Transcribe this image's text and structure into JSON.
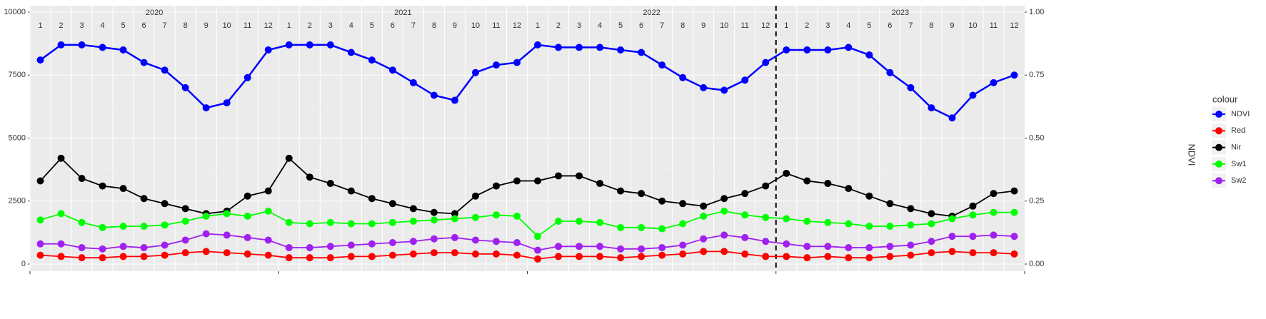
{
  "chart_data": {
    "type": "line",
    "years": [
      "2020",
      "2021",
      "2022",
      "2023"
    ],
    "categories": [
      "1",
      "2",
      "3",
      "4",
      "5",
      "6",
      "7",
      "8",
      "9",
      "10",
      "11",
      "12",
      "1",
      "2",
      "3",
      "4",
      "5",
      "6",
      "7",
      "8",
      "9",
      "10",
      "11",
      "12",
      "1",
      "2",
      "3",
      "4",
      "5",
      "6",
      "7",
      "8",
      "9",
      "10",
      "11",
      "12",
      "1",
      "2",
      "3",
      "4",
      "5",
      "6",
      "7",
      "8",
      "9",
      "10",
      "11",
      "12"
    ],
    "y2label": "NDVI",
    "legend_title": "colour",
    "legend": "right",
    "grid": true,
    "ylim": [
      0,
      10000
    ],
    "yticks": [
      0,
      2500,
      5000,
      7500,
      10000
    ],
    "y2lim": [
      0,
      1
    ],
    "y2ticks": [
      {
        "value": 0,
        "label": "0.00"
      },
      {
        "value": 0.25,
        "label": "0.25"
      },
      {
        "value": 0.5,
        "label": "0.50"
      },
      {
        "value": 0.75,
        "label": "0.75"
      },
      {
        "value": 1,
        "label": "1.00"
      }
    ],
    "series": [
      {
        "name": "NDVI",
        "color": "#0000ff",
        "axis": "y2",
        "values": [
          0.81,
          0.87,
          0.87,
          0.86,
          0.85,
          0.8,
          0.77,
          0.7,
          0.62,
          0.64,
          0.74,
          0.85,
          0.87,
          0.87,
          0.87,
          0.84,
          0.81,
          0.77,
          0.72,
          0.67,
          0.65,
          0.76,
          0.79,
          0.8,
          0.87,
          0.86,
          0.86,
          0.86,
          0.85,
          0.84,
          0.79,
          0.74,
          0.7,
          0.69,
          0.73,
          0.8,
          0.85,
          0.85,
          0.85,
          0.86,
          0.83,
          0.76,
          0.7,
          0.62,
          0.58,
          0.67,
          0.72,
          0.75
        ]
      },
      {
        "name": "Red",
        "color": "#ff0000",
        "values": [
          350,
          300,
          250,
          250,
          300,
          300,
          350,
          450,
          500,
          450,
          400,
          350,
          250,
          250,
          250,
          300,
          300,
          350,
          400,
          450,
          450,
          400,
          400,
          350,
          200,
          300,
          300,
          300,
          250,
          300,
          350,
          400,
          500,
          500,
          400,
          300,
          300,
          250,
          300,
          250,
          250,
          300,
          350,
          450,
          500,
          450,
          450,
          400
        ]
      },
      {
        "name": "Nir",
        "color": "#000000",
        "values": [
          3300,
          4200,
          3400,
          3100,
          3000,
          2600,
          2400,
          2200,
          2000,
          2100,
          2700,
          2900,
          4200,
          3450,
          3200,
          2900,
          2600,
          2400,
          2200,
          2050,
          2000,
          2700,
          3100,
          3300,
          3300,
          3500,
          3500,
          3200,
          2900,
          2800,
          2500,
          2400,
          2300,
          2600,
          2800,
          3100,
          3600,
          3300,
          3200,
          3000,
          2700,
          2400,
          2200,
          2000,
          1900,
          2300,
          2800,
          2900
        ]
      },
      {
        "name": "Sw1",
        "color": "#00ff00",
        "values": [
          1750,
          2000,
          1650,
          1450,
          1500,
          1500,
          1550,
          1700,
          1900,
          2000,
          1900,
          2100,
          1650,
          1600,
          1650,
          1600,
          1600,
          1650,
          1700,
          1750,
          1800,
          1850,
          1950,
          1900,
          1100,
          1700,
          1700,
          1650,
          1450,
          1450,
          1400,
          1600,
          1900,
          2100,
          1950,
          1850,
          1800,
          1700,
          1650,
          1600,
          1500,
          1500,
          1550,
          1600,
          1800,
          1950,
          2050,
          2050
        ]
      },
      {
        "name": "Sw2",
        "color": "#a020f0",
        "values": [
          800,
          800,
          650,
          600,
          700,
          650,
          750,
          950,
          1200,
          1150,
          1050,
          950,
          650,
          650,
          700,
          750,
          800,
          850,
          900,
          1000,
          1050,
          950,
          900,
          850,
          550,
          700,
          700,
          700,
          600,
          600,
          650,
          750,
          1000,
          1150,
          1050,
          900,
          800,
          700,
          700,
          650,
          650,
          700,
          750,
          900,
          1100,
          1100,
          1150,
          1100
        ]
      }
    ]
  }
}
